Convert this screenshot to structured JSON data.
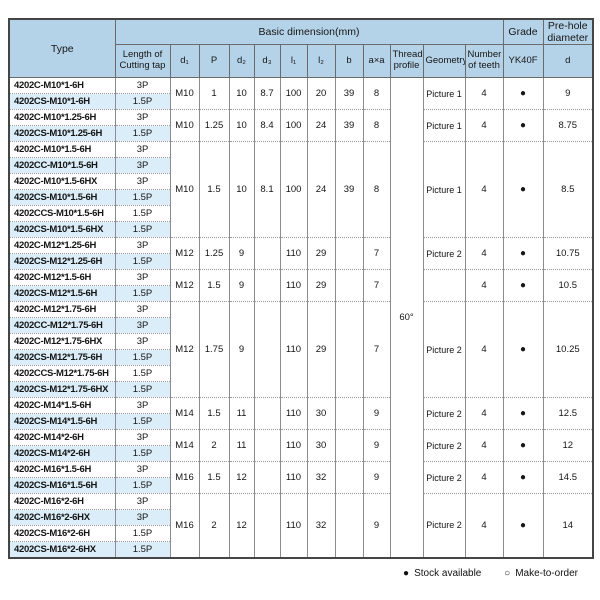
{
  "colors": {
    "header_bg": "#b5d3e8",
    "row_alt_bg": "#daedf8",
    "outer_border": "#454545",
    "stock_dot": "#111111"
  },
  "header": {
    "type": "Type",
    "basic_dimension": "Basic dimension(mm)",
    "grade": "Grade",
    "pre_hole": "Pre-hole diameter",
    "length_of_cutting_tap": "Length of Cutting tap",
    "d1": "d₁",
    "p": "P",
    "d2": "d₂",
    "d3": "d₃",
    "l1": "l₁",
    "l2": "l₂",
    "b": "b",
    "axa": "a×a",
    "thread_profile": "Thread profile",
    "geometry": "Geometry",
    "number_of_teeth": "Number of teeth",
    "yk40f": "YK40F",
    "d": "d"
  },
  "thread_profile_value": "60°",
  "groups": [
    {
      "d1": "M10",
      "p": "1",
      "d2": "10",
      "d3": "8.7",
      "l1": "100",
      "l2": "20",
      "b": "39",
      "axa": "8",
      "geometry": "Picture 1",
      "teeth": "4",
      "grade": "●",
      "d": "9",
      "rows": [
        {
          "type": "4202C-M10*1-6H",
          "len": "3P"
        },
        {
          "type": "4202CS-M10*1-6H",
          "len": "1.5P"
        }
      ]
    },
    {
      "d1": "M10",
      "p": "1.25",
      "d2": "10",
      "d3": "8.4",
      "l1": "100",
      "l2": "24",
      "b": "39",
      "axa": "8",
      "geometry": "Picture 1",
      "teeth": "4",
      "grade": "●",
      "d": "8.75",
      "rows": [
        {
          "type": "4202C-M10*1.25-6H",
          "len": "3P"
        },
        {
          "type": "4202CS-M10*1.25-6H",
          "len": "1.5P"
        }
      ]
    },
    {
      "d1": "M10",
      "p": "1.5",
      "d2": "10",
      "d3": "8.1",
      "l1": "100",
      "l2": "24",
      "b": "39",
      "axa": "8",
      "geometry": "Picture 1",
      "teeth": "4",
      "grade": "●",
      "d": "8.5",
      "rows": [
        {
          "type": "4202C-M10*1.5-6H",
          "len": "3P"
        },
        {
          "type": "4202CC-M10*1.5-6H",
          "len": "3P"
        },
        {
          "type": "4202C-M10*1.5-6HX",
          "len": "3P"
        },
        {
          "type": "4202CS-M10*1.5-6H",
          "len": "1.5P"
        },
        {
          "type": "4202CCS-M10*1.5-6H",
          "len": "1.5P"
        },
        {
          "type": "4202CS-M10*1.5-6HX",
          "len": "1.5P"
        }
      ]
    },
    {
      "d1": "M12",
      "p": "1.25",
      "d2": "9",
      "d3": "",
      "l1": "110",
      "l2": "29",
      "b": "",
      "axa": "7",
      "geometry": "Picture 2",
      "teeth": "4",
      "grade": "●",
      "d": "10.75",
      "rows": [
        {
          "type": "4202C-M12*1.25-6H",
          "len": "3P"
        },
        {
          "type": "4202CS-M12*1.25-6H",
          "len": "1.5P"
        }
      ]
    },
    {
      "d1": "M12",
      "p": "1.5",
      "d2": "9",
      "d3": "",
      "l1": "110",
      "l2": "29",
      "b": "",
      "axa": "7",
      "geometry": "",
      "teeth": "4",
      "grade": "●",
      "d": "10.5",
      "rows": [
        {
          "type": "4202C-M12*1.5-6H",
          "len": "3P"
        },
        {
          "type": "4202CS-M12*1.5-6H",
          "len": "1.5P"
        }
      ]
    },
    {
      "d1": "M12",
      "p": "1.75",
      "d2": "9",
      "d3": "",
      "l1": "110",
      "l2": "29",
      "b": "",
      "axa": "7",
      "geometry": "Picture 2",
      "teeth": "4",
      "grade": "●",
      "d": "10.25",
      "rows": [
        {
          "type": "4202C-M12*1.75-6H",
          "len": "3P"
        },
        {
          "type": "4202CC-M12*1.75-6H",
          "len": "3P"
        },
        {
          "type": "4202C-M12*1.75-6HX",
          "len": "3P"
        },
        {
          "type": "4202CS-M12*1.75-6H",
          "len": "1.5P"
        },
        {
          "type": "4202CCS-M12*1.75-6H",
          "len": "1.5P"
        },
        {
          "type": "4202CS-M12*1.75-6HX",
          "len": "1.5P"
        }
      ]
    },
    {
      "d1": "M14",
      "p": "1.5",
      "d2": "11",
      "d3": "",
      "l1": "110",
      "l2": "30",
      "b": "",
      "axa": "9",
      "geometry": "Picture 2",
      "teeth": "4",
      "grade": "●",
      "d": "12.5",
      "rows": [
        {
          "type": "4202C-M14*1.5-6H",
          "len": "3P"
        },
        {
          "type": "4202CS-M14*1.5-6H",
          "len": "1.5P"
        }
      ]
    },
    {
      "d1": "M14",
      "p": "2",
      "d2": "11",
      "d3": "",
      "l1": "110",
      "l2": "30",
      "b": "",
      "axa": "9",
      "geometry": "Picture 2",
      "teeth": "4",
      "grade": "●",
      "d": "12",
      "rows": [
        {
          "type": "4202C-M14*2-6H",
          "len": "3P"
        },
        {
          "type": "4202CS-M14*2-6H",
          "len": "1.5P"
        }
      ]
    },
    {
      "d1": "M16",
      "p": "1.5",
      "d2": "12",
      "d3": "",
      "l1": "110",
      "l2": "32",
      "b": "",
      "axa": "9",
      "geometry": "Picture 2",
      "teeth": "4",
      "grade": "●",
      "d": "14.5",
      "rows": [
        {
          "type": "4202C-M16*1.5-6H",
          "len": "3P"
        },
        {
          "type": "4202CS-M16*1.5-6H",
          "len": "1.5P"
        }
      ]
    },
    {
      "d1": "M16",
      "p": "2",
      "d2": "12",
      "d3": "",
      "l1": "110",
      "l2": "32",
      "b": "",
      "axa": "9",
      "geometry": "Picture 2",
      "teeth": "4",
      "grade": "●",
      "d": "14",
      "rows": [
        {
          "type": "4202C-M16*2-6H",
          "len": "3P"
        },
        {
          "type": "4202C-M16*2-6HX",
          "len": "3P"
        },
        {
          "type": "4202CS-M16*2-6H",
          "len": "1.5P"
        },
        {
          "type": "4202CS-M16*2-6HX",
          "len": "1.5P"
        }
      ]
    }
  ],
  "legend": {
    "stock_symbol": "●",
    "stock_label": "Stock available",
    "mto_symbol": "○",
    "mto_label": "Make-to-order"
  }
}
